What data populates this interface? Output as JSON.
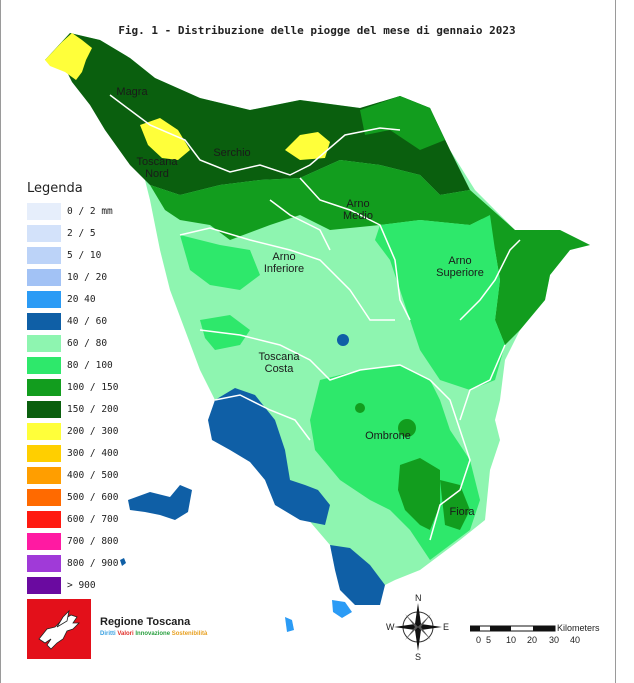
{
  "title": "Fig. 1 - Distribuzione delle piogge del mese di gennaio 2023",
  "legend": {
    "title": "Legenda",
    "items": [
      {
        "label": "0 / 2 mm",
        "color": "#e6eefb"
      },
      {
        "label": "2 / 5",
        "color": "#d3e2fa"
      },
      {
        "label": "5 / 10",
        "color": "#bcd3f8"
      },
      {
        "label": "10 / 20",
        "color": "#a2c2f5"
      },
      {
        "label": "20 40",
        "color": "#2b9bf5"
      },
      {
        "label": "40 / 60",
        "color": "#0f5fa6"
      },
      {
        "label": "60 / 80",
        "color": "#8ef5b0"
      },
      {
        "label": "80 / 100",
        "color": "#2ee86b"
      },
      {
        "label": "100 / 150",
        "color": "#129d1e"
      },
      {
        "label": "150 / 200",
        "color": "#0a5f0e"
      },
      {
        "label": "200 / 300",
        "color": "#ffff3a"
      },
      {
        "label": "300 / 400",
        "color": "#ffcf00"
      },
      {
        "label": "400 / 500",
        "color": "#ff9e00"
      },
      {
        "label": "500 / 600",
        "color": "#ff6a00"
      },
      {
        "label": "600 / 700",
        "color": "#ff1a10"
      },
      {
        "label": "700 / 800",
        "color": "#ff1aa2"
      },
      {
        "label": "800 / 900",
        "color": "#a03ad8"
      },
      {
        "label": "> 900",
        "color": "#6a0aa0"
      }
    ]
  },
  "regions": {
    "magra": "Magra",
    "serchio": "Serchio",
    "toscana_nord": "Toscana\nNord",
    "arno_medio": "Arno\nMedio",
    "arno_inferiore": "Arno\nInferiore",
    "arno_superiore": "Arno\nSuperiore",
    "toscana_costa": "Toscana\nCosta",
    "ombrone": "Ombrone",
    "fiora": "Fiora"
  },
  "logo": {
    "name": "Regione Toscana",
    "tagline": [
      {
        "text": "Diritti",
        "color": "#3aa0e0"
      },
      {
        "text": "Valori",
        "color": "#e0302a"
      },
      {
        "text": "Innovazione",
        "color": "#2aa040"
      },
      {
        "text": "Sostenibilità",
        "color": "#e8a020"
      }
    ]
  },
  "compass": {
    "n": "N",
    "s": "S",
    "e": "E",
    "w": "W"
  },
  "scale": {
    "ticks": [
      "0",
      "5",
      "10",
      "20",
      "30",
      "40"
    ],
    "unit": "Kilometers"
  }
}
